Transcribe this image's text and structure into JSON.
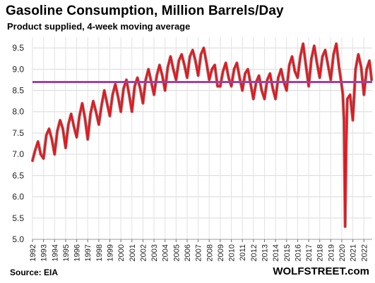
{
  "chart_data": {
    "type": "line",
    "title": "Gasoline Consumption, Million Barrels/Day",
    "subtitle": "Product supplied, 4-week moving average",
    "source": "Source: EIA",
    "brand": "WOLFSTREET.com",
    "xlabel": "",
    "ylabel": "",
    "ylim": [
      5.0,
      9.75
    ],
    "xlim": [
      1992.0,
      2022.75
    ],
    "y_ticks": [
      "5.0",
      "5.5",
      "6.0",
      "6.5",
      "7.0",
      "7.5",
      "8.0",
      "8.5",
      "9.0",
      "9.5"
    ],
    "x_ticks": [
      "1992",
      "1993",
      "1994",
      "1995",
      "1996",
      "1997",
      "1998",
      "1999",
      "2000",
      "2001",
      "2002",
      "2003",
      "2004",
      "2005",
      "2006",
      "2007",
      "2008",
      "2009",
      "2010",
      "2011",
      "2012",
      "2013",
      "2014",
      "2015",
      "2016",
      "2017",
      "2018",
      "2019",
      "2020",
      "2021",
      "2022"
    ],
    "grid": true,
    "reference_line": {
      "y": 8.7,
      "color": "#a040a0"
    },
    "series": [
      {
        "name": "",
        "color": "#e8141c",
        "x": [
          1992.0,
          1992.25,
          1992.5,
          1992.75,
          1993.0,
          1993.25,
          1993.5,
          1993.75,
          1994.0,
          1994.25,
          1994.5,
          1994.75,
          1995.0,
          1995.25,
          1995.5,
          1995.75,
          1996.0,
          1996.25,
          1996.5,
          1996.75,
          1997.0,
          1997.25,
          1997.5,
          1997.75,
          1998.0,
          1998.25,
          1998.5,
          1998.75,
          1999.0,
          1999.25,
          1999.5,
          1999.75,
          2000.0,
          2000.25,
          2000.5,
          2000.75,
          2001.0,
          2001.25,
          2001.5,
          2001.75,
          2002.0,
          2002.25,
          2002.5,
          2002.75,
          2003.0,
          2003.25,
          2003.5,
          2003.75,
          2004.0,
          2004.25,
          2004.5,
          2004.75,
          2005.0,
          2005.25,
          2005.5,
          2005.75,
          2006.0,
          2006.25,
          2006.5,
          2006.75,
          2007.0,
          2007.25,
          2007.5,
          2007.75,
          2008.0,
          2008.25,
          2008.5,
          2008.75,
          2009.0,
          2009.25,
          2009.5,
          2009.75,
          2010.0,
          2010.25,
          2010.5,
          2010.75,
          2011.0,
          2011.25,
          2011.5,
          2011.75,
          2012.0,
          2012.25,
          2012.5,
          2012.75,
          2013.0,
          2013.25,
          2013.5,
          2013.75,
          2014.0,
          2014.25,
          2014.5,
          2014.75,
          2015.0,
          2015.25,
          2015.5,
          2015.75,
          2016.0,
          2016.25,
          2016.5,
          2016.75,
          2017.0,
          2017.25,
          2017.5,
          2017.75,
          2018.0,
          2018.25,
          2018.5,
          2018.75,
          2019.0,
          2019.25,
          2019.5,
          2019.75,
          2020.0,
          2020.1,
          2020.2,
          2020.3,
          2020.4,
          2020.5,
          2020.75,
          2021.0,
          2021.25,
          2021.5,
          2021.75,
          2022.0,
          2022.25,
          2022.5,
          2022.7
        ],
        "y": [
          6.85,
          7.1,
          7.3,
          7.0,
          6.9,
          7.45,
          7.6,
          7.35,
          7.0,
          7.55,
          7.8,
          7.6,
          7.15,
          7.7,
          7.95,
          7.65,
          7.4,
          7.9,
          8.2,
          7.85,
          7.35,
          7.95,
          8.25,
          8.0,
          7.7,
          8.15,
          8.5,
          8.2,
          7.9,
          8.4,
          8.65,
          8.35,
          8.0,
          8.55,
          8.75,
          8.4,
          8.0,
          8.6,
          8.8,
          8.55,
          8.2,
          8.75,
          9.0,
          8.7,
          8.4,
          8.85,
          9.1,
          8.85,
          8.5,
          9.05,
          9.3,
          9.0,
          8.75,
          9.2,
          9.35,
          9.1,
          8.8,
          9.3,
          9.45,
          9.2,
          8.85,
          9.35,
          9.5,
          9.15,
          8.75,
          9.0,
          9.1,
          8.6,
          8.6,
          8.95,
          9.15,
          8.8,
          8.6,
          9.0,
          9.15,
          8.8,
          8.5,
          8.9,
          9.0,
          8.65,
          8.3,
          8.7,
          8.85,
          8.5,
          8.3,
          8.75,
          8.9,
          8.55,
          8.3,
          8.8,
          9.0,
          8.7,
          8.5,
          9.1,
          9.3,
          8.95,
          8.8,
          9.3,
          9.6,
          9.1,
          8.6,
          9.25,
          9.55,
          9.15,
          8.8,
          9.3,
          9.45,
          9.1,
          8.75,
          9.35,
          9.6,
          9.05,
          8.6,
          8.4,
          7.8,
          5.3,
          7.2,
          8.3,
          8.4,
          7.8,
          9.0,
          9.35,
          9.05,
          8.4,
          9.0,
          9.2,
          8.75
        ]
      }
    ]
  }
}
